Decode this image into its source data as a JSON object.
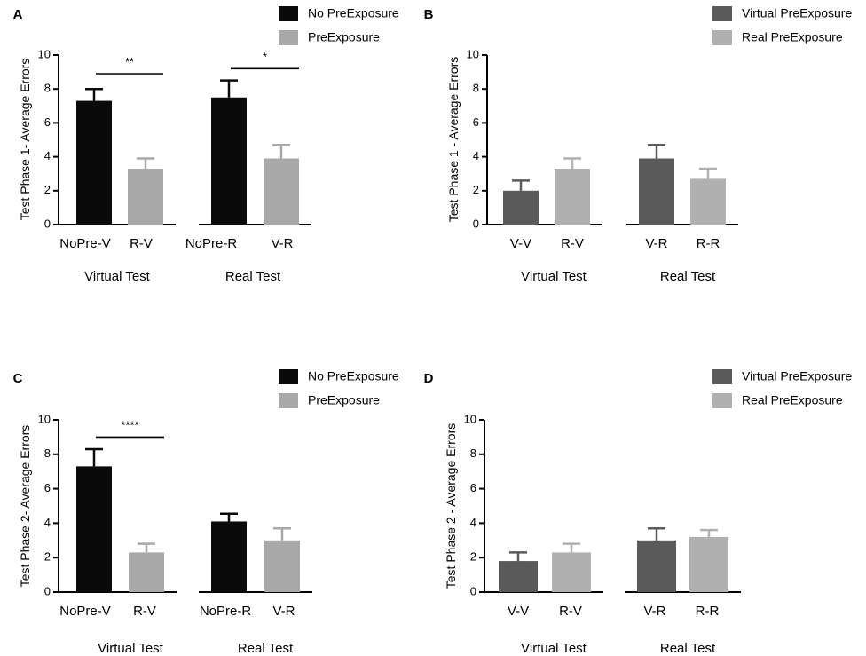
{
  "figure": {
    "width": 976,
    "height": 739
  },
  "chart_data": [
    {
      "panel": "A",
      "type": "bar",
      "ylabel": "Test Phase 1- Average Errors",
      "ylim": [
        0,
        10
      ],
      "yticks": [
        0,
        2,
        4,
        6,
        8,
        10
      ],
      "legend": [
        {
          "name": "No PreExposure",
          "color": "#0a0a0a"
        },
        {
          "name": "PreExposure",
          "color": "#a8a8a8"
        }
      ],
      "groups": [
        "Virtual Test",
        "Real Test"
      ],
      "bars": [
        {
          "label": "NoPre-V",
          "value": 7.3,
          "error": 0.7,
          "color": "#0a0a0a",
          "group": 0
        },
        {
          "label": "R-V",
          "value": 3.3,
          "error": 0.6,
          "color": "#a8a8a8",
          "group": 0
        },
        {
          "label": "NoPre-R",
          "value": 7.5,
          "error": 1.0,
          "color": "#0a0a0a",
          "group": 1
        },
        {
          "label": "V-R",
          "value": 3.9,
          "error": 0.8,
          "color": "#a8a8a8",
          "group": 1
        }
      ],
      "significance": [
        {
          "from": 0,
          "to": 1,
          "label": "**",
          "y": 8.9
        },
        {
          "from": 2,
          "to": 3,
          "label": "*",
          "y": 9.2
        }
      ]
    },
    {
      "panel": "B",
      "type": "bar",
      "ylabel": "Test Phase 1 - Average Errors",
      "ylim": [
        0,
        10
      ],
      "yticks": [
        0,
        2,
        4,
        6,
        8,
        10
      ],
      "legend": [
        {
          "name": "Virtual PreExposure",
          "color": "#5a5a5a"
        },
        {
          "name": "Real PreExposure",
          "color": "#b0b0b0"
        }
      ],
      "groups": [
        "Virtual Test",
        "Real Test"
      ],
      "bars": [
        {
          "label": "V-V",
          "value": 2.0,
          "error": 0.6,
          "color": "#5a5a5a",
          "group": 0
        },
        {
          "label": "R-V",
          "value": 3.3,
          "error": 0.6,
          "color": "#b0b0b0",
          "group": 0
        },
        {
          "label": "V-R",
          "value": 3.9,
          "error": 0.8,
          "color": "#5a5a5a",
          "group": 1
        },
        {
          "label": "R-R",
          "value": 2.7,
          "error": 0.6,
          "color": "#b0b0b0",
          "group": 1
        }
      ],
      "significance": []
    },
    {
      "panel": "C",
      "type": "bar",
      "ylabel": "Test Phase 2- Average Errors",
      "ylim": [
        0,
        10
      ],
      "yticks": [
        0,
        2,
        4,
        6,
        8,
        10
      ],
      "legend": [
        {
          "name": "No PreExposure",
          "color": "#0a0a0a"
        },
        {
          "name": "PreExposure",
          "color": "#a8a8a8"
        }
      ],
      "groups": [
        "Virtual Test",
        "Real Test"
      ],
      "bars": [
        {
          "label": "NoPre-V",
          "value": 7.3,
          "error": 1.0,
          "color": "#0a0a0a",
          "group": 0
        },
        {
          "label": "R-V",
          "value": 2.3,
          "error": 0.5,
          "color": "#a8a8a8",
          "group": 0
        },
        {
          "label": "NoPre-R",
          "value": 4.1,
          "error": 0.45,
          "color": "#0a0a0a",
          "group": 1
        },
        {
          "label": "V-R",
          "value": 3.0,
          "error": 0.7,
          "color": "#a8a8a8",
          "group": 1
        }
      ],
      "significance": [
        {
          "from": 0,
          "to": 1,
          "label": "****",
          "y": 9.0
        }
      ]
    },
    {
      "panel": "D",
      "type": "bar",
      "ylabel": "Test Phase 2 - Average Errors",
      "ylim": [
        0,
        10
      ],
      "yticks": [
        0,
        2,
        4,
        6,
        8,
        10
      ],
      "legend": [
        {
          "name": "Virtual PreExposure",
          "color": "#5a5a5a"
        },
        {
          "name": "Real PreExposure",
          "color": "#b0b0b0"
        }
      ],
      "groups": [
        "Virtual Test",
        "Real Test"
      ],
      "bars": [
        {
          "label": "V-V",
          "value": 1.8,
          "error": 0.5,
          "color": "#5a5a5a",
          "group": 0
        },
        {
          "label": "R-V",
          "value": 2.3,
          "error": 0.5,
          "color": "#b0b0b0",
          "group": 0
        },
        {
          "label": "V-R",
          "value": 3.0,
          "error": 0.7,
          "color": "#5a5a5a",
          "group": 1
        },
        {
          "label": "R-R",
          "value": 3.2,
          "error": 0.4,
          "color": "#b0b0b0",
          "group": 1
        }
      ],
      "significance": []
    }
  ]
}
